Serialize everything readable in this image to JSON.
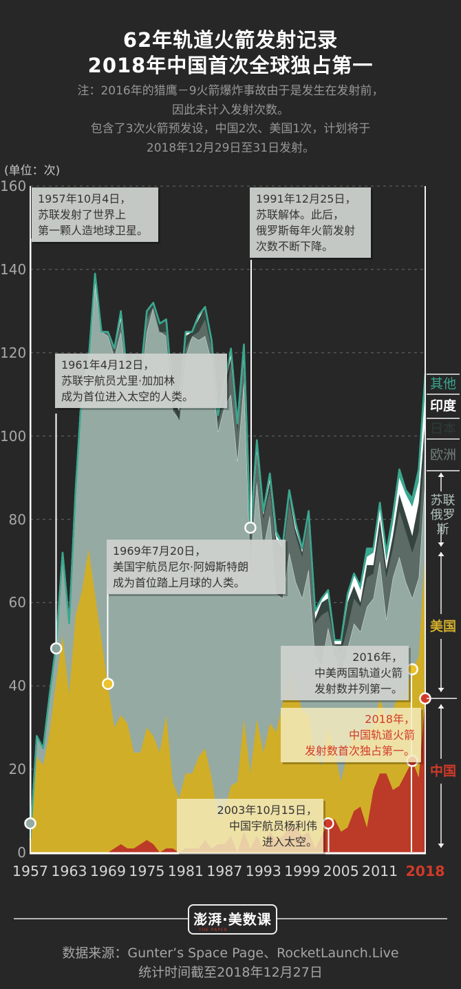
{
  "title": {
    "line1": "62年轨道火箭发射记录",
    "line2": "2018年中国首次全球独占第一"
  },
  "note": {
    "lines": [
      "注：2016年的猎鹰－9火箭爆炸事故由于是发生在发射前，",
      "因此未计入发射次数。",
      "包含了3次火箭预发设，中国2次、美国1次，计划将于",
      "2018年12月29日至31日发射。"
    ]
  },
  "unit_label": "(单位：次)",
  "axis": {
    "y_ticks": [
      0,
      20,
      40,
      60,
      80,
      100,
      120,
      140,
      160
    ],
    "x_ticks": [
      1957,
      1963,
      1969,
      1975,
      1981,
      1987,
      1993,
      1999,
      2005,
      2011,
      2018
    ],
    "x_highlight": 2018
  },
  "legend": {
    "others": "其他",
    "india": "印度",
    "japan": "日本",
    "europe": "欧洲",
    "soviet_line1": "苏联",
    "soviet_line2": "俄罗斯",
    "usa": "美国",
    "china": "中国"
  },
  "colors": {
    "background": "#272727",
    "china": "#bc3a28",
    "usa": "#d1ae27",
    "soviet": "#95aaa3",
    "europe": "#5d6b66",
    "japan": "#36443f",
    "india": "#ffffff",
    "other": "#3aa78f",
    "accent_red": "#d13a28",
    "accent_yellow": "#eac32d",
    "grid": "rgba(220,220,220,0.3)",
    "axis_line": "#f2f2f2"
  },
  "chart_data": {
    "type": "area",
    "stacked": true,
    "title": "62年轨道火箭发射记录",
    "ylabel": "次",
    "ylim": [
      0,
      160
    ],
    "grid": "dashed horizontal every 20",
    "legend_position": "right axis bands",
    "years": [
      1957,
      1958,
      1959,
      1960,
      1961,
      1962,
      1963,
      1964,
      1965,
      1966,
      1967,
      1968,
      1969,
      1970,
      1971,
      1972,
      1973,
      1974,
      1975,
      1976,
      1977,
      1978,
      1979,
      1980,
      1981,
      1982,
      1983,
      1984,
      1985,
      1986,
      1987,
      1988,
      1989,
      1990,
      1991,
      1992,
      1993,
      1994,
      1995,
      1996,
      1997,
      1998,
      1999,
      2000,
      2001,
      2002,
      2003,
      2004,
      2005,
      2006,
      2007,
      2008,
      2009,
      2010,
      2011,
      2012,
      2013,
      2014,
      2015,
      2016,
      2017,
      2018
    ],
    "series": [
      {
        "name": "中国",
        "color": "#bc3a28",
        "stroke": "#bc3a28",
        "stroke_w": 1,
        "values": [
          0,
          0,
          0,
          0,
          0,
          0,
          0,
          0,
          0,
          0,
          0,
          0,
          0,
          1,
          2,
          1,
          1,
          2,
          3,
          2,
          0,
          1,
          1,
          0,
          1,
          1,
          1,
          3,
          1,
          2,
          2,
          4,
          0,
          5,
          1,
          4,
          1,
          5,
          3,
          4,
          6,
          6,
          4,
          5,
          1,
          4,
          7,
          8,
          5,
          6,
          10,
          11,
          6,
          15,
          19,
          19,
          15,
          16,
          19,
          22,
          18,
          37
        ]
      },
      {
        "name": "美国",
        "color": "#d1ae27",
        "stroke": "#d1ae27",
        "stroke_w": 1,
        "values": [
          1,
          23,
          21,
          29,
          41,
          52,
          38,
          57,
          63,
          73,
          62,
          51,
          40,
          29,
          31,
          30,
          23,
          22,
          27,
          26,
          24,
          32,
          16,
          13,
          18,
          18,
          22,
          22,
          17,
          6,
          8,
          12,
          17,
          27,
          18,
          28,
          23,
          26,
          26,
          32,
          37,
          34,
          30,
          28,
          22,
          17,
          23,
          16,
          12,
          18,
          19,
          15,
          24,
          15,
          18,
          13,
          19,
          23,
          20,
          22,
          29,
          36
        ]
      },
      {
        "name": "苏联/俄罗斯",
        "color": "#95aaa3",
        "stroke": "#cfdeda",
        "stroke_w": 1.2,
        "values": [
          2,
          5,
          4,
          9,
          9,
          20,
          17,
          30,
          48,
          44,
          74,
          74,
          84,
          89,
          92,
          81,
          95,
          87,
          95,
          103,
          101,
          91,
          89,
          91,
          100,
          105,
          100,
          99,
          100,
          93,
          97,
          94,
          77,
          81,
          50,
          57,
          49,
          50,
          33,
          25,
          29,
          25,
          27,
          35,
          24,
          24,
          24,
          23,
          26,
          25,
          26,
          27,
          29,
          31,
          33,
          24,
          32,
          32,
          26,
          17,
          19,
          17
        ]
      },
      {
        "name": "欧洲",
        "color": "#5d6b66",
        "stroke": "#5d6b66",
        "stroke_w": 1.5,
        "values": [
          0,
          0,
          0,
          0,
          0,
          0,
          0,
          0,
          1,
          1,
          2,
          0,
          1,
          1,
          2,
          1,
          0,
          1,
          3,
          0,
          0,
          1,
          1,
          0,
          2,
          0,
          2,
          4,
          3,
          2,
          2,
          7,
          7,
          5,
          5,
          7,
          7,
          6,
          11,
          10,
          12,
          11,
          10,
          12,
          8,
          12,
          4,
          3,
          5,
          5,
          6,
          6,
          7,
          6,
          7,
          10,
          7,
          11,
          12,
          11,
          11,
          8
        ]
      },
      {
        "name": "日本",
        "color": "#36443f",
        "stroke": "#36443f",
        "stroke_w": 1.5,
        "values": [
          0,
          0,
          0,
          0,
          0,
          0,
          0,
          0,
          0,
          0,
          0,
          0,
          0,
          1,
          2,
          1,
          0,
          2,
          2,
          1,
          2,
          3,
          2,
          2,
          3,
          1,
          3,
          3,
          2,
          2,
          3,
          2,
          2,
          3,
          2,
          1,
          1,
          2,
          2,
          2,
          2,
          2,
          1,
          1,
          1,
          3,
          3,
          0,
          2,
          6,
          3,
          1,
          3,
          2,
          3,
          2,
          3,
          4,
          4,
          4,
          7,
          6
        ]
      },
      {
        "name": "印度",
        "color": "#ffffff",
        "stroke": "#ffffff",
        "stroke_w": 2.2,
        "values": [
          0,
          0,
          0,
          0,
          0,
          0,
          0,
          0,
          0,
          0,
          0,
          0,
          0,
          0,
          0,
          0,
          0,
          0,
          0,
          0,
          0,
          0,
          1,
          1,
          1,
          0,
          1,
          0,
          0,
          0,
          1,
          1,
          0,
          0,
          1,
          1,
          1,
          2,
          1,
          1,
          1,
          0,
          1,
          1,
          2,
          1,
          2,
          1,
          1,
          1,
          3,
          3,
          2,
          3,
          3,
          2,
          3,
          4,
          5,
          7,
          5,
          7
        ]
      },
      {
        "name": "其他",
        "color": "#3aa78f",
        "stroke": "#3aa78f",
        "stroke_w": 2.6,
        "values": [
          0,
          0,
          0,
          0,
          0,
          0,
          0,
          0,
          0,
          0,
          1,
          0,
          0,
          0,
          1,
          0,
          0,
          0,
          0,
          0,
          0,
          0,
          0,
          0,
          0,
          0,
          0,
          0,
          0,
          0,
          0,
          1,
          0,
          1,
          0,
          1,
          0,
          0,
          1,
          0,
          0,
          1,
          0,
          0,
          0,
          0,
          0,
          0,
          0,
          1,
          0,
          1,
          2,
          1,
          1,
          2,
          2,
          2,
          1,
          2,
          3,
          4
        ]
      }
    ]
  },
  "annotations": [
    {
      "id": "a1957",
      "lines": [
        "1957年10月4日，",
        "苏联发射了世界上",
        "第一颗人造地球卫星。"
      ],
      "markers": [
        {
          "year": 1957,
          "value": 7,
          "color": "#95aaa3"
        }
      ]
    },
    {
      "id": "a1961",
      "lines": [
        "1961年4月12日，",
        "苏联宇航员尤里·加加林",
        "成为首位进入太空的人类。"
      ],
      "markers": [
        {
          "year": 1961,
          "value": 49,
          "color": "#8aa49d"
        }
      ]
    },
    {
      "id": "a1969",
      "lines": [
        "1969年7月20日，",
        "美国宇航员尼尔·阿姆斯特朗",
        "成为首位踏上月球的人类。"
      ],
      "markers": [
        {
          "year": 1969,
          "value": 40.5,
          "color": "#eac32d"
        }
      ]
    },
    {
      "id": "a1991",
      "lines": [
        "1991年12月25日，",
        "苏联解体。此后，",
        "俄罗斯每年火箭发射",
        "次数不断下降。"
      ],
      "markers": [
        {
          "year": 1991,
          "value": 78,
          "color": "#95aaa3"
        }
      ]
    },
    {
      "id": "a2016",
      "lines": [
        "2016年，",
        "中美两国轨道火箭",
        "发射数并列第一。"
      ],
      "markers": [
        {
          "year": 2016,
          "value": 44,
          "color": "#eac32d"
        },
        {
          "year": 2016,
          "value": 22,
          "color": "#d13a28"
        }
      ]
    },
    {
      "id": "a2018",
      "lines": [
        "2018年，",
        "中国轨道火箭",
        "发射数首次独占第一。"
      ],
      "markers": [
        {
          "year": 2018,
          "value": 37,
          "color": "#d13a28"
        }
      ]
    },
    {
      "id": "a2003",
      "lines": [
        "2003年10月15日，",
        "中国宇航员杨利伟",
        "进入太空。"
      ],
      "markers": [
        {
          "year": 2003,
          "value": 7,
          "color": "#d13a28"
        }
      ]
    }
  ],
  "footer": {
    "logo_main": "澎湃·美数课",
    "logo_sub": "THE PAPER",
    "source_line1": "数据来源：Gunter’s Space Page、RocketLaunch.Live",
    "source_line2": "统计时间截至2018年12月27日"
  }
}
